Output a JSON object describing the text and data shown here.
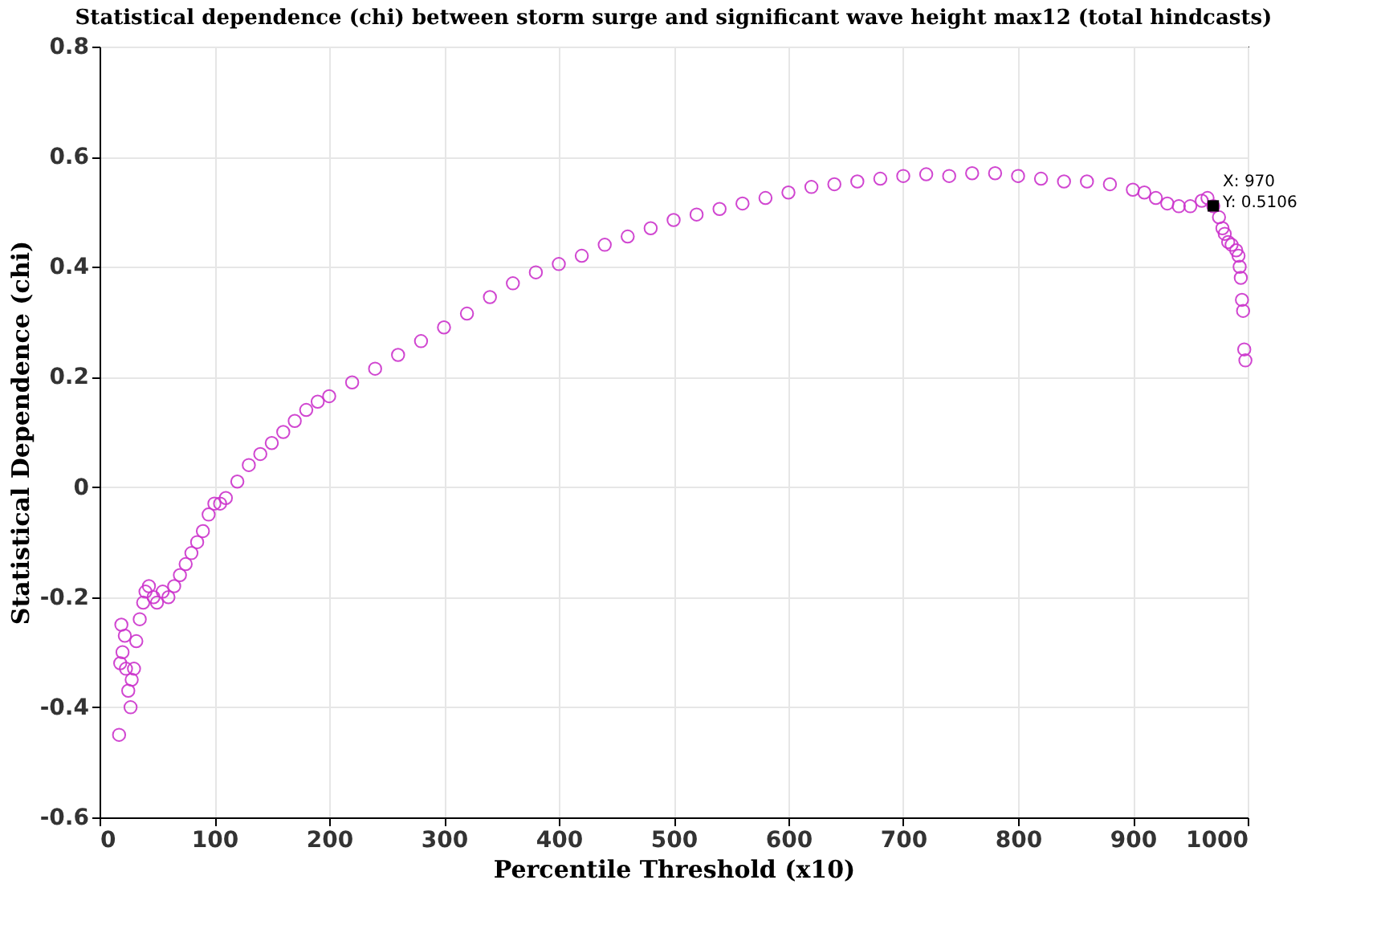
{
  "chart_data": {
    "type": "scatter",
    "title": "Statistical dependence (chi) between storm surge and significant wave height max12 (total hindcasts)",
    "xlabel": "Percentile Threshold (x10)",
    "ylabel": "Statistical Dependence (chi)",
    "x": [
      17,
      18,
      19,
      20,
      22,
      23,
      25,
      27,
      28,
      30,
      32,
      35,
      38,
      40,
      43,
      47,
      50,
      55,
      60,
      65,
      70,
      75,
      80,
      85,
      90,
      95,
      100,
      105,
      110,
      120,
      130,
      140,
      150,
      160,
      170,
      180,
      190,
      200,
      220,
      240,
      260,
      280,
      300,
      320,
      340,
      360,
      380,
      400,
      420,
      440,
      460,
      480,
      500,
      520,
      540,
      560,
      580,
      600,
      620,
      640,
      660,
      680,
      700,
      720,
      740,
      760,
      780,
      800,
      820,
      840,
      860,
      880,
      900,
      910,
      920,
      930,
      940,
      950,
      960,
      965,
      970,
      975,
      978,
      980,
      983,
      986,
      990,
      992,
      993,
      994,
      995,
      996,
      997,
      998
    ],
    "series": [
      {
        "color": "#cc33cc",
        "values": [
          -0.45,
          -0.32,
          -0.25,
          -0.3,
          -0.27,
          -0.33,
          -0.37,
          -0.4,
          -0.35,
          -0.33,
          -0.28,
          -0.24,
          -0.21,
          -0.19,
          -0.18,
          -0.2,
          -0.21,
          -0.19,
          -0.2,
          -0.18,
          -0.16,
          -0.14,
          -0.12,
          -0.1,
          -0.08,
          -0.05,
          -0.03,
          -0.03,
          -0.02,
          0.01,
          0.04,
          0.06,
          0.08,
          0.1,
          0.12,
          0.14,
          0.155,
          0.165,
          0.19,
          0.215,
          0.24,
          0.265,
          0.29,
          0.315,
          0.345,
          0.37,
          0.39,
          0.405,
          0.42,
          0.44,
          0.455,
          0.47,
          0.485,
          0.495,
          0.505,
          0.515,
          0.525,
          0.535,
          0.545,
          0.55,
          0.555,
          0.56,
          0.565,
          0.568,
          0.565,
          0.57,
          0.57,
          0.565,
          0.56,
          0.555,
          0.555,
          0.55,
          0.54,
          0.535,
          0.525,
          0.515,
          0.51,
          0.51,
          0.52,
          0.525,
          0.51,
          0.49,
          0.47,
          0.46,
          0.445,
          0.44,
          0.43,
          0.42,
          0.4,
          0.38,
          0.34,
          0.32,
          0.25,
          0.23
        ]
      }
    ],
    "annotations": [
      {
        "text": "X: 970\nY: 0.5106",
        "x": 970,
        "y": 0.5106
      }
    ],
    "xlim": [
      0,
      1000
    ],
    "xticks": [
      0,
      100,
      200,
      300,
      400,
      500,
      600,
      700,
      800,
      900,
      1000
    ],
    "ylim": [
      -0.6,
      0.8
    ],
    "yticks": [
      -0.6,
      -0.4,
      -0.2,
      0,
      0.2,
      0.4,
      0.6,
      0.8
    ],
    "grid": true,
    "marker": "circle"
  }
}
